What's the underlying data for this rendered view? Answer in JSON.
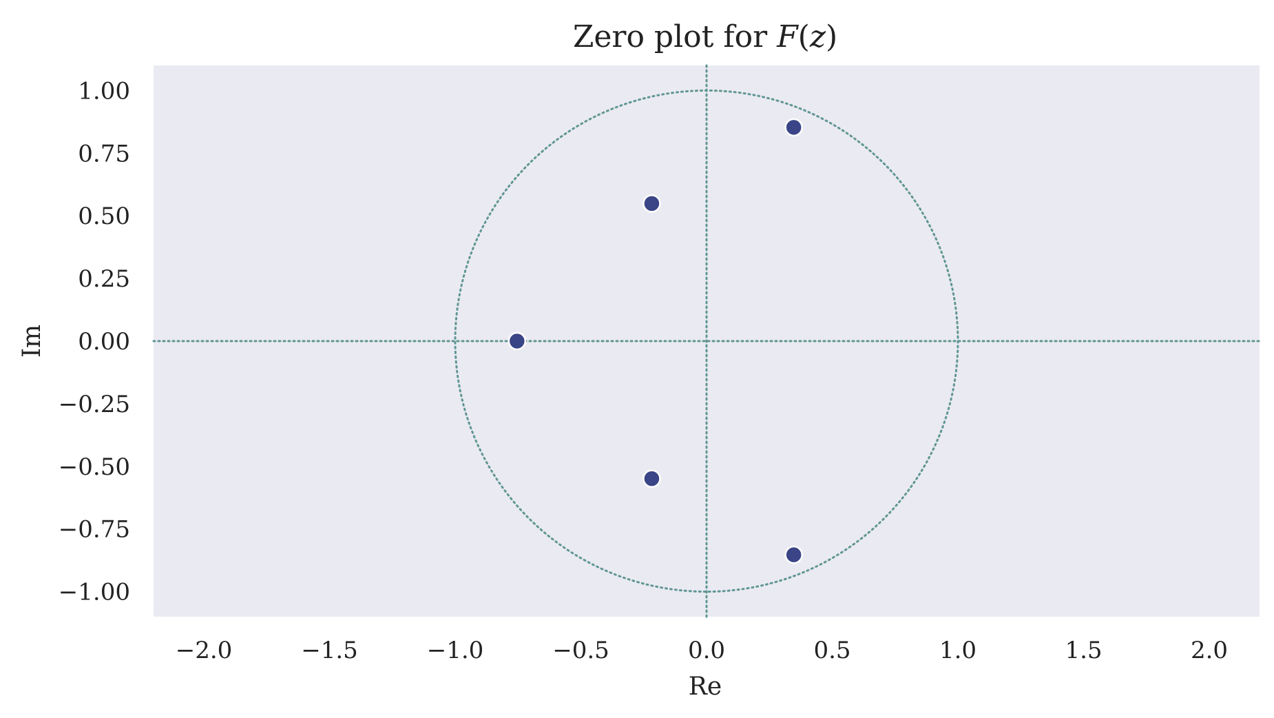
{
  "chart_data": {
    "type": "scatter",
    "title": "Zero plot for F(z)",
    "xlabel": "Re",
    "ylabel": "Im",
    "xlim": [
      -2.2,
      2.2
    ],
    "ylim": [
      -1.1,
      1.1
    ],
    "xticks": [
      -2.0,
      -1.5,
      -1.0,
      -0.5,
      0.0,
      0.5,
      1.0,
      1.5,
      2.0
    ],
    "xtick_labels": [
      "−2.0",
      "−1.5",
      "−1.0",
      "−0.5",
      "0.0",
      "0.5",
      "1.0",
      "1.5",
      "2.0"
    ],
    "yticks": [
      1.0,
      0.75,
      0.5,
      0.25,
      0.0,
      -0.25,
      -0.5,
      -0.75,
      -1.0
    ],
    "ytick_labels": [
      "1.00",
      "0.75",
      "0.50",
      "0.25",
      "0.00",
      "−0.25",
      "−0.50",
      "−0.75",
      "−1.00"
    ],
    "grid": false,
    "unit_circle": true,
    "points": [
      {
        "x": 0.347,
        "y": 0.853
      },
      {
        "x": -0.218,
        "y": 0.549
      },
      {
        "x": -0.754,
        "y": 0.0
      },
      {
        "x": -0.218,
        "y": -0.549
      },
      {
        "x": 0.347,
        "y": -0.853
      }
    ],
    "colors": {
      "background": "#eaeaf2",
      "marker": "#3a4587",
      "reference_lines": "#5f9693"
    }
  }
}
